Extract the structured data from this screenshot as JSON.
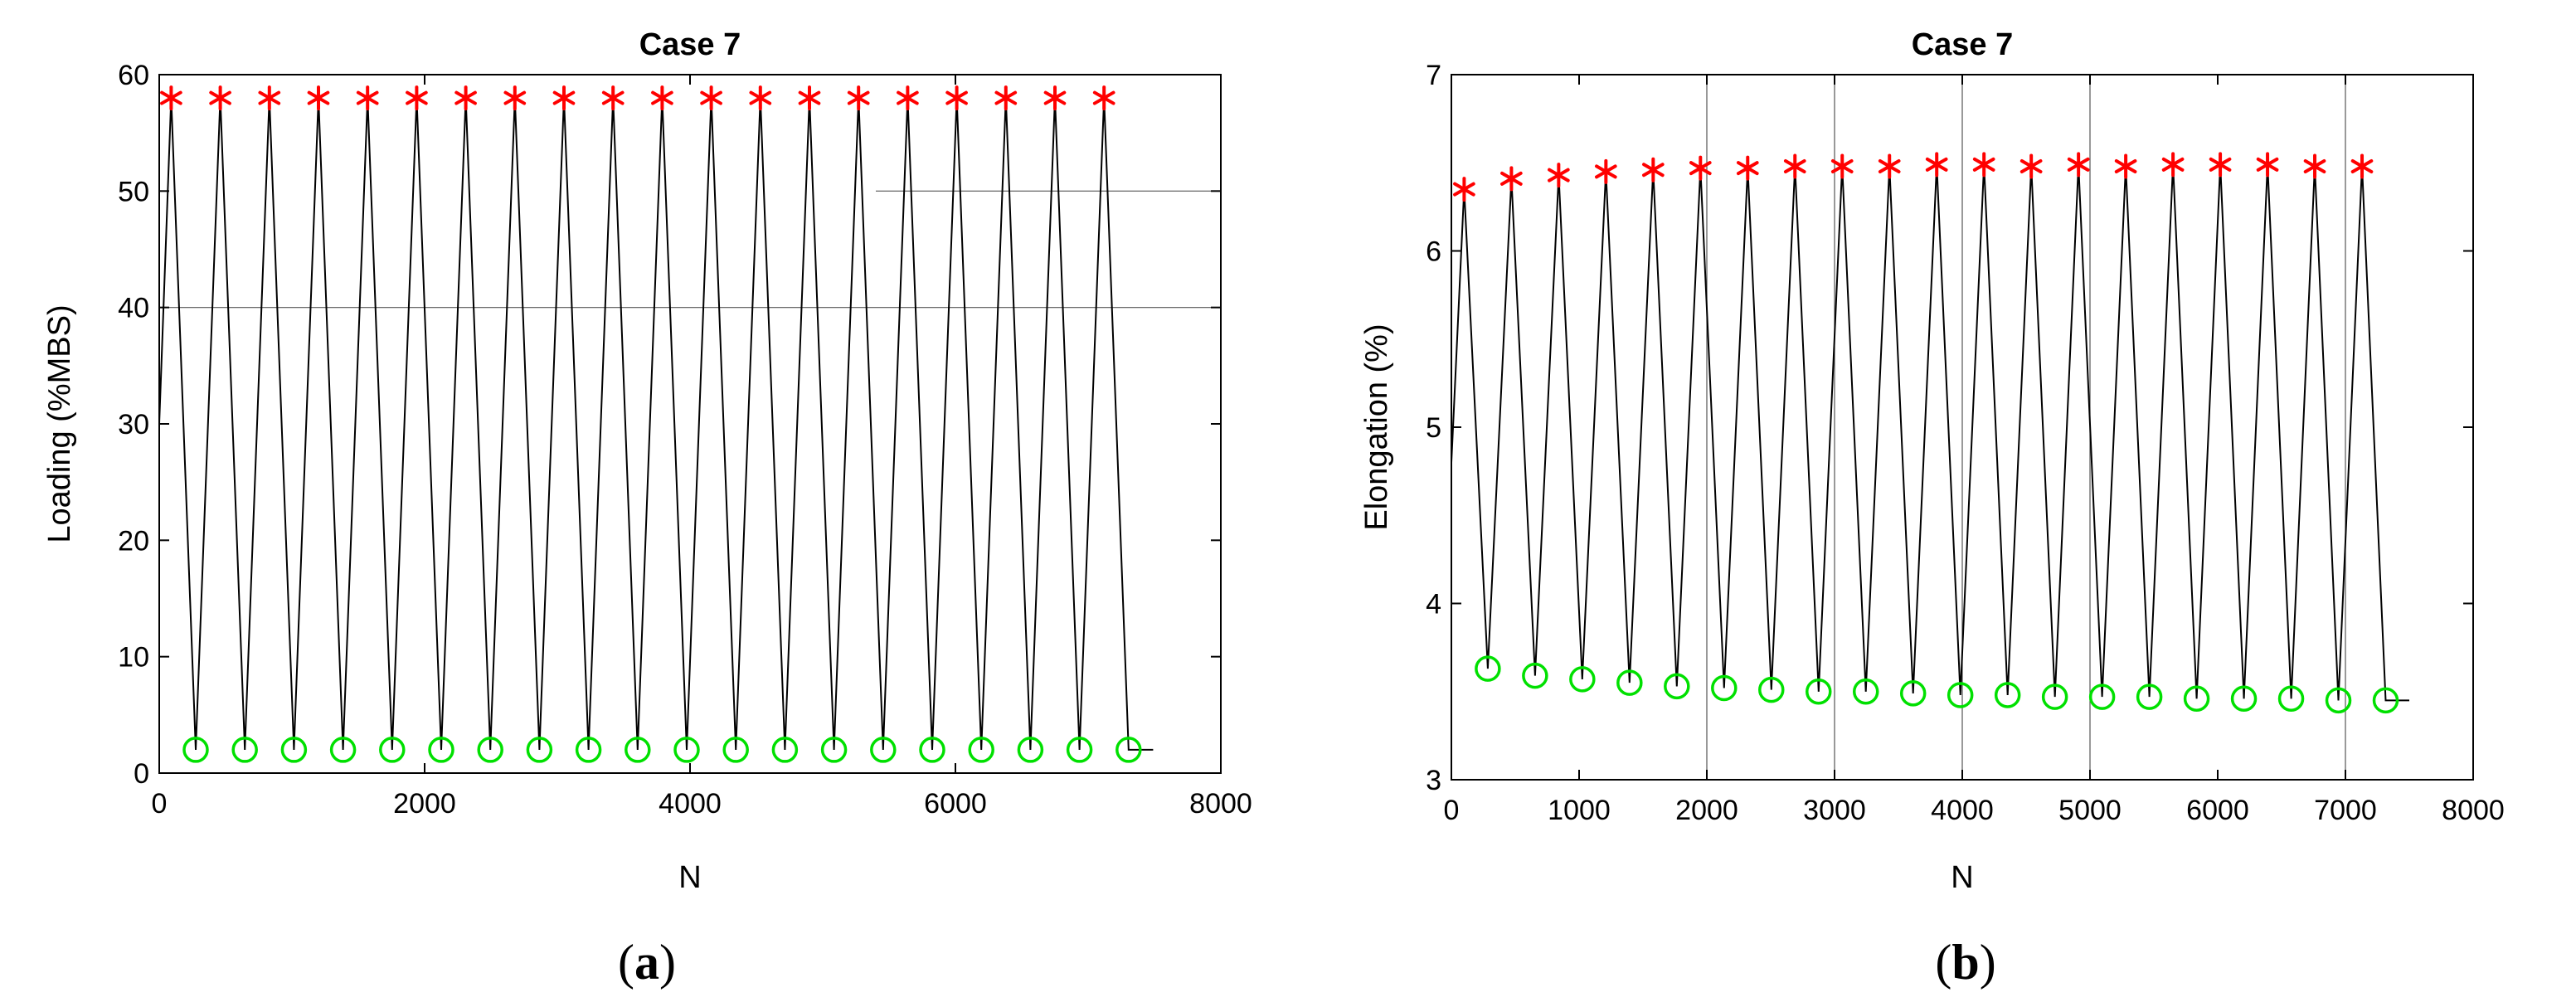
{
  "chart_data": [
    {
      "type": "line",
      "title": "Case 7",
      "panel_label_open": "(",
      "panel_label_letter": "a",
      "panel_label_close": ")",
      "xlabel": "N",
      "ylabel": "Loading (%MBS)",
      "xlim": [
        0,
        8000
      ],
      "ylim": [
        0,
        60
      ],
      "xticks": [
        0,
        2000,
        4000,
        6000,
        8000
      ],
      "yticks": [
        0,
        10,
        20,
        30,
        40,
        50,
        60
      ],
      "xtick_labels": [
        "0",
        "2000",
        "4000",
        "6000",
        "8000"
      ],
      "ytick_labels": [
        "0",
        "10",
        "20",
        "30",
        "40",
        "50",
        "60"
      ],
      "colors": {
        "line": "#000000",
        "peak": "#ff0000",
        "valley": "#00e000",
        "ref": "#555555"
      },
      "reference_lines": [
        {
          "x_start": 0,
          "x_end": 8000,
          "y": 40
        },
        {
          "x_start": 5400,
          "x_end": 8000,
          "y": 50
        }
      ],
      "series": [
        {
          "name": "Loading",
          "x": [
            0,
            90,
            275,
            460,
            645,
            830,
            1015,
            1200,
            1385,
            1570,
            1755,
            1940,
            2125,
            2310,
            2495,
            2680,
            2865,
            3050,
            3235,
            3420,
            3605,
            3790,
            3975,
            4160,
            4345,
            4530,
            4715,
            4900,
            5085,
            5270,
            5455,
            5640,
            5825,
            6010,
            6195,
            6380,
            6565,
            6750,
            6935,
            7120,
            7305,
            7490
          ],
          "y": [
            30,
            58,
            2,
            58,
            2,
            58,
            2,
            58,
            2,
            58,
            2,
            58,
            2,
            58,
            2,
            58,
            2,
            58,
            2,
            58,
            2,
            58,
            2,
            58,
            2,
            58,
            2,
            58,
            2,
            58,
            2,
            58,
            2,
            58,
            2,
            58,
            2,
            58,
            2,
            58,
            2,
            2
          ]
        },
        {
          "name": "Peaks",
          "marker": "asterisk",
          "x": [
            90,
            460,
            830,
            1200,
            1570,
            1940,
            2310,
            2680,
            3050,
            3420,
            3790,
            4160,
            4530,
            4900,
            5270,
            5640,
            6010,
            6380,
            6750,
            7120
          ],
          "y": [
            58,
            58,
            58,
            58,
            58,
            58,
            58,
            58,
            58,
            58,
            58,
            58,
            58,
            58,
            58,
            58,
            58,
            58,
            58,
            58
          ]
        },
        {
          "name": "Valleys",
          "marker": "circle",
          "x": [
            275,
            645,
            1015,
            1385,
            1755,
            2125,
            2495,
            2865,
            3235,
            3605,
            3975,
            4345,
            4715,
            5085,
            5455,
            5825,
            6195,
            6565,
            6935,
            7305
          ],
          "y": [
            2,
            2,
            2,
            2,
            2,
            2,
            2,
            2,
            2,
            2,
            2,
            2,
            2,
            2,
            2,
            2,
            2,
            2,
            2,
            2
          ]
        }
      ]
    },
    {
      "type": "line",
      "title": "Case 7",
      "panel_label_open": "(",
      "panel_label_letter": "b",
      "panel_label_close": ")",
      "xlabel": "N",
      "ylabel": "Elongation (%)",
      "xlim": [
        0,
        8000
      ],
      "ylim": [
        3,
        7
      ],
      "xticks": [
        0,
        1000,
        2000,
        3000,
        4000,
        5000,
        6000,
        7000,
        8000
      ],
      "yticks": [
        3,
        4,
        5,
        6,
        7
      ],
      "xtick_labels": [
        "0",
        "1000",
        "2000",
        "3000",
        "4000",
        "5000",
        "6000",
        "7000",
        "8000"
      ],
      "ytick_labels": [
        "3",
        "4",
        "5",
        "6",
        "7"
      ],
      "colors": {
        "line": "#000000",
        "peak": "#ff0000",
        "valley": "#00e000",
        "ref": "#555555"
      },
      "reference_vlines": [
        2000,
        3000,
        4000,
        5000,
        7000
      ],
      "series": [
        {
          "name": "Elongation",
          "x": [
            0,
            100,
            285,
            470,
            655,
            840,
            1025,
            1210,
            1395,
            1580,
            1765,
            1950,
            2135,
            2320,
            2505,
            2690,
            2875,
            3060,
            3245,
            3430,
            3615,
            3800,
            3985,
            4170,
            4355,
            4540,
            4725,
            4910,
            5095,
            5280,
            5465,
            5650,
            5835,
            6020,
            6205,
            6390,
            6575,
            6760,
            6945,
            7130,
            7315,
            7500
          ],
          "y": [
            4.8,
            6.35,
            3.63,
            6.41,
            3.59,
            6.43,
            3.57,
            6.45,
            3.55,
            6.46,
            3.53,
            6.47,
            3.52,
            6.47,
            3.51,
            6.48,
            3.5,
            6.48,
            3.5,
            6.48,
            3.49,
            6.49,
            3.48,
            6.49,
            3.48,
            6.48,
            3.47,
            6.49,
            3.47,
            6.48,
            3.47,
            6.49,
            3.46,
            6.49,
            3.46,
            6.49,
            3.46,
            6.48,
            3.45,
            6.48,
            3.45,
            3.45
          ]
        },
        {
          "name": "Peaks",
          "marker": "asterisk",
          "x": [
            100,
            470,
            840,
            1210,
            1580,
            1950,
            2320,
            2690,
            3060,
            3430,
            3800,
            4170,
            4540,
            4910,
            5280,
            5650,
            6020,
            6390,
            6760,
            7130
          ],
          "y": [
            6.35,
            6.41,
            6.43,
            6.45,
            6.46,
            6.47,
            6.47,
            6.48,
            6.48,
            6.48,
            6.49,
            6.49,
            6.48,
            6.49,
            6.48,
            6.49,
            6.49,
            6.49,
            6.48,
            6.48
          ]
        },
        {
          "name": "Valleys",
          "marker": "circle",
          "x": [
            285,
            655,
            1025,
            1395,
            1765,
            2135,
            2505,
            2875,
            3245,
            3615,
            3985,
            4355,
            4725,
            5095,
            5465,
            5835,
            6205,
            6575,
            6945,
            7315
          ],
          "y": [
            3.63,
            3.59,
            3.57,
            3.55,
            3.53,
            3.52,
            3.51,
            3.5,
            3.5,
            3.49,
            3.48,
            3.48,
            3.47,
            3.47,
            3.47,
            3.46,
            3.46,
            3.46,
            3.45,
            3.45
          ]
        }
      ]
    }
  ]
}
